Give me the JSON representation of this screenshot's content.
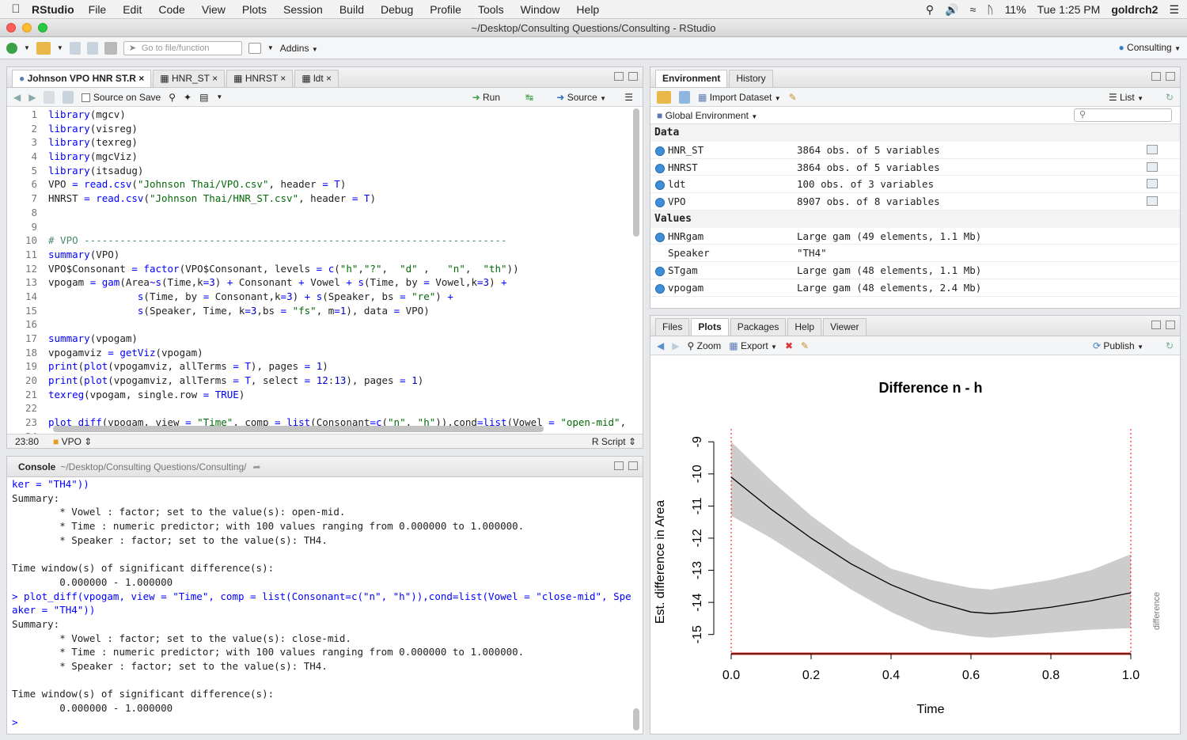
{
  "menubar": {
    "app": "RStudio",
    "items": [
      "File",
      "Edit",
      "Code",
      "View",
      "Plots",
      "Session",
      "Build",
      "Debug",
      "Profile",
      "Tools",
      "Window",
      "Help"
    ],
    "battery": "11%",
    "clock": "Tue 1:25 PM",
    "user": "goldrch2"
  },
  "window": {
    "title": "~/Desktop/Consulting Questions/Consulting - RStudio"
  },
  "toolbar": {
    "goto_placeholder": "Go to file/function",
    "addins": "Addins",
    "project": "Consulting"
  },
  "editor": {
    "tabs": [
      "Johnson VPO HNR ST.R",
      "HNR_ST",
      "HNRST",
      "ldt"
    ],
    "source_on_save": "Source on Save",
    "run": "Run",
    "source": "Source",
    "position": "23:80",
    "section": "VPO",
    "filetype": "R Script",
    "lines": [
      {
        "n": "1",
        "t": "library(mgcv)"
      },
      {
        "n": "2",
        "t": "library(visreg)"
      },
      {
        "n": "3",
        "t": "library(texreg)"
      },
      {
        "n": "4",
        "t": "library(mgcViz)"
      },
      {
        "n": "5",
        "t": "library(itsadug)"
      },
      {
        "n": "6",
        "t": "VPO = read.csv(\"Johnson Thai/VPO.csv\", header = T)"
      },
      {
        "n": "7",
        "t": "HNRST = read.csv(\"Johnson Thai/HNR_ST.csv\", header = T)"
      },
      {
        "n": "8",
        "t": ""
      },
      {
        "n": "9",
        "t": ""
      },
      {
        "n": "10",
        "t": "# VPO -----------------------------------------------------------------------"
      },
      {
        "n": "11",
        "t": "summary(VPO)"
      },
      {
        "n": "12",
        "t": "VPO$Consonant = factor(VPO$Consonant, levels = c(\"h\",\"?\",  \"d\" ,   \"n\",  \"th\"))"
      },
      {
        "n": "13",
        "t": "vpogam = gam(Area~s(Time,k=3) + Consonant + Vowel + s(Time, by = Vowel,k=3) +"
      },
      {
        "n": "14",
        "t": "               s(Time, by = Consonant,k=3) + s(Speaker, bs = \"re\") +"
      },
      {
        "n": "15",
        "t": "               s(Speaker, Time, k=3,bs = \"fs\", m=1), data = VPO)"
      },
      {
        "n": "16",
        "t": ""
      },
      {
        "n": "17",
        "t": "summary(vpogam)"
      },
      {
        "n": "18",
        "t": "vpogamviz = getViz(vpogam)"
      },
      {
        "n": "19",
        "t": "print(plot(vpogamviz, allTerms = T), pages = 1)"
      },
      {
        "n": "20",
        "t": "print(plot(vpogamviz, allTerms = T, select = 12:13), pages = 1)"
      },
      {
        "n": "21",
        "t": "texreg(vpogam, single.row = TRUE)"
      },
      {
        "n": "22",
        "t": ""
      },
      {
        "n": "23",
        "t": "plot_diff(vpogam, view = \"Time\", comp = list(Consonant=c(\"n\", \"h\")),cond=list(Vowel = \"open-mid\","
      },
      {
        "n": "24",
        "t": ""
      }
    ]
  },
  "console": {
    "title": "Console",
    "path": "~/Desktop/Consulting Questions/Consulting/",
    "lines": [
      {
        "t": "ker = \"TH4\"))",
        "cmd": true
      },
      {
        "t": "Summary:",
        "cmd": false
      },
      {
        "t": "        * Vowel : factor; set to the value(s): open-mid.",
        "cmd": false
      },
      {
        "t": "        * Time : numeric predictor; with 100 values ranging from 0.000000 to 1.000000.",
        "cmd": false
      },
      {
        "t": "        * Speaker : factor; set to the value(s): TH4.",
        "cmd": false
      },
      {
        "t": "",
        "cmd": false
      },
      {
        "t": "Time window(s) of significant difference(s):",
        "cmd": false
      },
      {
        "t": "        0.000000 - 1.000000",
        "cmd": false
      },
      {
        "t": "> plot_diff(vpogam, view = \"Time\", comp = list(Consonant=c(\"n\", \"h\")),cond=list(Vowel = \"close-mid\", Spe",
        "cmd": true
      },
      {
        "t": "aker = \"TH4\"))",
        "cmd": true
      },
      {
        "t": "Summary:",
        "cmd": false
      },
      {
        "t": "        * Vowel : factor; set to the value(s): close-mid.",
        "cmd": false
      },
      {
        "t": "        * Time : numeric predictor; with 100 values ranging from 0.000000 to 1.000000.",
        "cmd": false
      },
      {
        "t": "        * Speaker : factor; set to the value(s): TH4.",
        "cmd": false
      },
      {
        "t": "",
        "cmd": false
      },
      {
        "t": "Time window(s) of significant difference(s):",
        "cmd": false
      },
      {
        "t": "        0.000000 - 1.000000",
        "cmd": false
      },
      {
        "t": ">",
        "cmd": true
      }
    ]
  },
  "environment": {
    "tabs": [
      "Environment",
      "History"
    ],
    "import_dataset": "Import Dataset",
    "list_view": "List",
    "scope": "Global Environment",
    "data_header": "Data",
    "values_header": "Values",
    "data": [
      {
        "name": "HNR_ST",
        "value": "3864 obs. of 5 variables"
      },
      {
        "name": "HNRST",
        "value": "3864 obs. of 5 variables"
      },
      {
        "name": "ldt",
        "value": "100 obs. of 3 variables"
      },
      {
        "name": "VPO",
        "value": "8907 obs. of 8 variables"
      }
    ],
    "values": [
      {
        "name": "HNRgam",
        "value": "Large gam (49 elements, 1.1 Mb)",
        "icon": true
      },
      {
        "name": "Speaker",
        "value": "\"TH4\"",
        "icon": false
      },
      {
        "name": "STgam",
        "value": "Large gam (48 elements, 1.1 Mb)",
        "icon": true
      },
      {
        "name": "vpogam",
        "value": "Large gam (48 elements, 2.4 Mb)",
        "icon": true
      }
    ]
  },
  "plots": {
    "tabs": [
      "Files",
      "Plots",
      "Packages",
      "Help",
      "Viewer"
    ],
    "zoom": "Zoom",
    "export": "Export",
    "publish": "Publish"
  },
  "chart_data": {
    "type": "line",
    "title": "Difference n - h",
    "xlabel": "Time",
    "ylabel": "Est. difference in Area",
    "side_label": "difference",
    "xlim": [
      0,
      1
    ],
    "ylim": [
      -15.5,
      -8.6
    ],
    "xticks": [
      "0.0",
      "0.2",
      "0.4",
      "0.6",
      "0.8",
      "1.0"
    ],
    "yticks": [
      "-9",
      "-10",
      "-11",
      "-12",
      "-13",
      "-14",
      "-15"
    ],
    "x": [
      0.0,
      0.1,
      0.2,
      0.3,
      0.4,
      0.5,
      0.6,
      0.65,
      0.7,
      0.8,
      0.9,
      1.0
    ],
    "fit": [
      -10.1,
      -11.1,
      -12.0,
      -12.8,
      -13.45,
      -13.95,
      -14.3,
      -14.35,
      -14.3,
      -14.15,
      -13.95,
      -13.7
    ],
    "upper": [
      -9.0,
      -10.2,
      -11.3,
      -12.2,
      -12.95,
      -13.3,
      -13.55,
      -13.6,
      -13.5,
      -13.3,
      -13.0,
      -12.5
    ],
    "lower": [
      -11.3,
      -12.0,
      -12.8,
      -13.6,
      -14.3,
      -14.85,
      -15.05,
      -15.1,
      -15.05,
      -14.95,
      -14.85,
      -14.8
    ],
    "sig_window": [
      0.0,
      1.0
    ],
    "colors": {
      "band": "#cccccc",
      "line": "#000000",
      "sig": "#e53a2b",
      "bound": "#ff0000"
    }
  }
}
